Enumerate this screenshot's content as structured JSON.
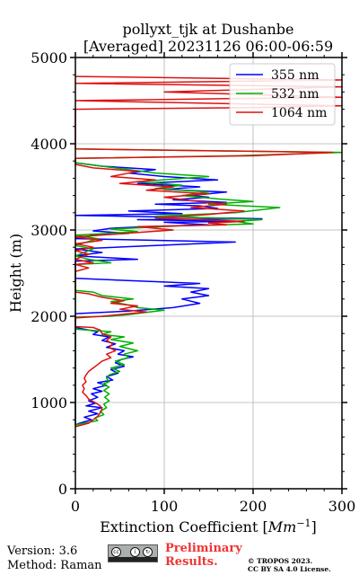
{
  "chart_data": {
    "type": "line",
    "title": "pollyxt_tjk at Dushanbe",
    "subtitle": "[Averaged] 20231126 06:00-06:59",
    "xlabel": "Extinction Coefficient [",
    "xlabel_unit": "Mm",
    "xlabel_exp": "−1",
    "xlabel_close": "]",
    "ylabel": "Height (m)",
    "xlim": [
      0,
      300
    ],
    "ylim": [
      0,
      5000
    ],
    "xticks": [
      0,
      100,
      200,
      300
    ],
    "yticks": [
      0,
      1000,
      2000,
      3000,
      4000,
      5000
    ],
    "grid": true,
    "legend_position": "top-right",
    "series": [
      {
        "name": "355 nm",
        "color": "#0000ff",
        "points": [
          [
            0,
            1870
          ],
          [
            10,
            1850
          ],
          [
            25,
            1820
          ],
          [
            20,
            1790
          ],
          [
            38,
            1760
          ],
          [
            30,
            1720
          ],
          [
            45,
            1680
          ],
          [
            35,
            1640
          ],
          [
            55,
            1600
          ],
          [
            48,
            1560
          ],
          [
            65,
            1530
          ],
          [
            52,
            1500
          ],
          [
            45,
            1460
          ],
          [
            55,
            1420
          ],
          [
            40,
            1380
          ],
          [
            48,
            1340
          ],
          [
            35,
            1300
          ],
          [
            42,
            1260
          ],
          [
            25,
            1230
          ],
          [
            35,
            1200
          ],
          [
            20,
            1160
          ],
          [
            30,
            1130
          ],
          [
            18,
            1100
          ],
          [
            25,
            1060
          ],
          [
            15,
            1020
          ],
          [
            22,
            990
          ],
          [
            12,
            960
          ],
          [
            30,
            940
          ],
          [
            15,
            900
          ],
          [
            25,
            870
          ],
          [
            10,
            830
          ],
          [
            18,
            800
          ],
          [
            5,
            760
          ],
          [
            0,
            740
          ],
          [
            0,
            2030
          ],
          [
            60,
            2060
          ],
          [
            110,
            2100
          ],
          [
            140,
            2150
          ],
          [
            120,
            2200
          ],
          [
            150,
            2240
          ],
          [
            130,
            2280
          ],
          [
            150,
            2320
          ],
          [
            100,
            2350
          ],
          [
            140,
            2380
          ],
          [
            0,
            2440
          ],
          [
            0,
            2640
          ],
          [
            70,
            2660
          ],
          [
            0,
            2700
          ],
          [
            30,
            2740
          ],
          [
            0,
            2780
          ],
          [
            180,
            2860
          ],
          [
            0,
            2900
          ],
          [
            20,
            2940
          ],
          [
            60,
            2960
          ],
          [
            20,
            2990
          ],
          [
            40,
            3020
          ],
          [
            80,
            3040
          ],
          [
            150,
            3060
          ],
          [
            100,
            3090
          ],
          [
            180,
            3100
          ],
          [
            70,
            3120
          ],
          [
            210,
            3130
          ],
          [
            0,
            3170
          ],
          [
            120,
            3190
          ],
          [
            60,
            3220
          ],
          [
            160,
            3250
          ],
          [
            140,
            3280
          ],
          [
            90,
            3300
          ],
          [
            170,
            3320
          ],
          [
            110,
            3350
          ],
          [
            150,
            3380
          ],
          [
            130,
            3400
          ],
          [
            170,
            3440
          ],
          [
            100,
            3470
          ],
          [
            140,
            3500
          ],
          [
            70,
            3540
          ],
          [
            160,
            3580
          ],
          [
            100,
            3620
          ],
          [
            60,
            3660
          ],
          [
            90,
            3700
          ],
          [
            30,
            3740
          ],
          [
            0,
            3780
          ]
        ]
      },
      {
        "name": "532 nm",
        "color": "#00b000",
        "points": [
          [
            0,
            1990
          ],
          [
            40,
            2000
          ],
          [
            60,
            2020
          ],
          [
            100,
            2070
          ],
          [
            70,
            2100
          ],
          [
            60,
            2130
          ],
          [
            40,
            2170
          ],
          [
            65,
            2200
          ],
          [
            30,
            2240
          ],
          [
            20,
            2280
          ],
          [
            0,
            2300
          ],
          [
            0,
            1850
          ],
          [
            40,
            1820
          ],
          [
            30,
            1790
          ],
          [
            55,
            1760
          ],
          [
            40,
            1730
          ],
          [
            65,
            1690
          ],
          [
            50,
            1650
          ],
          [
            70,
            1600
          ],
          [
            55,
            1560
          ],
          [
            60,
            1520
          ],
          [
            45,
            1480
          ],
          [
            55,
            1440
          ],
          [
            40,
            1400
          ],
          [
            50,
            1360
          ],
          [
            38,
            1320
          ],
          [
            35,
            1280
          ],
          [
            38,
            1240
          ],
          [
            30,
            1210
          ],
          [
            38,
            1180
          ],
          [
            32,
            1140
          ],
          [
            38,
            1100
          ],
          [
            33,
            1060
          ],
          [
            38,
            1020
          ],
          [
            32,
            980
          ],
          [
            35,
            940
          ],
          [
            28,
            900
          ],
          [
            32,
            860
          ],
          [
            22,
            820
          ],
          [
            25,
            790
          ],
          [
            10,
            760
          ],
          [
            0,
            740
          ],
          [
            0,
            2600
          ],
          [
            40,
            2620
          ],
          [
            15,
            2660
          ],
          [
            0,
            2700
          ],
          [
            20,
            2780
          ],
          [
            0,
            2820
          ],
          [
            25,
            2900
          ],
          [
            0,
            2940
          ],
          [
            70,
            2980
          ],
          [
            40,
            3010
          ],
          [
            120,
            3050
          ],
          [
            200,
            3070
          ],
          [
            180,
            3100
          ],
          [
            210,
            3120
          ],
          [
            90,
            3160
          ],
          [
            180,
            3200
          ],
          [
            230,
            3260
          ],
          [
            150,
            3300
          ],
          [
            200,
            3330
          ],
          [
            160,
            3360
          ],
          [
            120,
            3400
          ],
          [
            150,
            3440
          ],
          [
            90,
            3480
          ],
          [
            120,
            3520
          ],
          [
            70,
            3560
          ],
          [
            150,
            3620
          ],
          [
            90,
            3660
          ],
          [
            60,
            3700
          ],
          [
            30,
            3740
          ],
          [
            0,
            3780
          ],
          [
            0,
            3830
          ],
          [
            180,
            3860
          ],
          [
            300,
            3900
          ],
          [
            0,
            3940
          ]
        ]
      },
      {
        "name": "1064 nm",
        "color": "#dd1111",
        "points": [
          [
            0,
            720
          ],
          [
            15,
            760
          ],
          [
            20,
            800
          ],
          [
            25,
            840
          ],
          [
            28,
            880
          ],
          [
            30,
            920
          ],
          [
            28,
            960
          ],
          [
            22,
            1000
          ],
          [
            15,
            1040
          ],
          [
            12,
            1080
          ],
          [
            8,
            1120
          ],
          [
            10,
            1160
          ],
          [
            8,
            1200
          ],
          [
            12,
            1240
          ],
          [
            10,
            1280
          ],
          [
            12,
            1320
          ],
          [
            15,
            1360
          ],
          [
            20,
            1400
          ],
          [
            25,
            1440
          ],
          [
            30,
            1480
          ],
          [
            40,
            1520
          ],
          [
            35,
            1560
          ],
          [
            45,
            1600
          ],
          [
            38,
            1640
          ],
          [
            42,
            1680
          ],
          [
            35,
            1720
          ],
          [
            40,
            1760
          ],
          [
            30,
            1800
          ],
          [
            28,
            1840
          ],
          [
            20,
            1870
          ],
          [
            0,
            1880
          ],
          [
            0,
            1980
          ],
          [
            30,
            2000
          ],
          [
            60,
            2030
          ],
          [
            80,
            2050
          ],
          [
            50,
            2080
          ],
          [
            70,
            2120
          ],
          [
            40,
            2150
          ],
          [
            55,
            2180
          ],
          [
            30,
            2220
          ],
          [
            15,
            2260
          ],
          [
            0,
            2280
          ],
          [
            0,
            2520
          ],
          [
            15,
            2560
          ],
          [
            0,
            2600
          ],
          [
            20,
            2620
          ],
          [
            0,
            2660
          ],
          [
            15,
            2720
          ],
          [
            0,
            2760
          ],
          [
            20,
            2800
          ],
          [
            0,
            2840
          ],
          [
            30,
            2880
          ],
          [
            0,
            2920
          ],
          [
            110,
            3000
          ],
          [
            70,
            3040
          ],
          [
            170,
            3060
          ],
          [
            150,
            3080
          ],
          [
            190,
            3100
          ],
          [
            90,
            3140
          ],
          [
            150,
            3180
          ],
          [
            190,
            3220
          ],
          [
            130,
            3260
          ],
          [
            170,
            3300
          ],
          [
            130,
            3340
          ],
          [
            100,
            3380
          ],
          [
            150,
            3420
          ],
          [
            80,
            3460
          ],
          [
            110,
            3500
          ],
          [
            50,
            3540
          ],
          [
            90,
            3580
          ],
          [
            40,
            3620
          ],
          [
            70,
            3680
          ],
          [
            20,
            3720
          ],
          [
            0,
            3760
          ],
          [
            0,
            3830
          ],
          [
            200,
            3860
          ],
          [
            290,
            3900
          ],
          [
            0,
            3940
          ],
          [
            0,
            4400
          ],
          [
            200,
            4420
          ],
          [
            300,
            4440
          ],
          [
            0,
            4500
          ],
          [
            300,
            4540
          ],
          [
            100,
            4600
          ],
          [
            300,
            4660
          ],
          [
            0,
            4700
          ],
          [
            300,
            4740
          ],
          [
            0,
            4780
          ]
        ]
      }
    ]
  },
  "footer": {
    "version_label": "Version: 3.6",
    "method_label": "Method: Raman",
    "preliminary_line1": "Preliminary",
    "preliminary_line2": "Results.",
    "copyright_line1": "© TROPOS 2023.",
    "copyright_line2": "CC BY SA 4.0 License."
  }
}
